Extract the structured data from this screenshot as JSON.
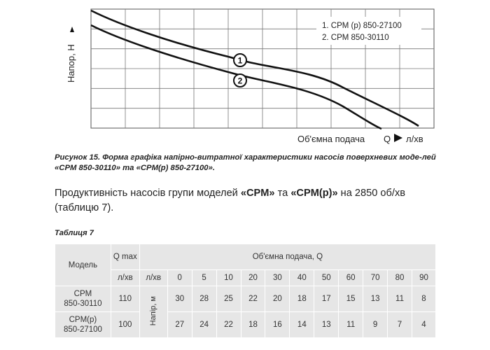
{
  "chart_data": {
    "type": "line",
    "ylabel": "Напор, Н",
    "xlabel": "Об'ємна подача",
    "x_axis_symbol": "Q",
    "x_unit": "л/хв",
    "legend": [
      "1. CPM (p) 850-27100",
      "2. CPM 850-30110"
    ],
    "series_markers": [
      "1",
      "2"
    ],
    "grid": true,
    "legend_position": "top-right"
  },
  "figure": {
    "caption": "Рисунок 15. Форма графіка напірно-витратної характеристики насосів поверхневих моде-лей «CPM 850-30110» та «CPM(p) 850-27100»."
  },
  "paragraph": {
    "text_start": "Продуктивність насосів групи моделей ",
    "bold1": "«CPM»",
    "text_mid": " та ",
    "bold2": "«CPM(p)»",
    "text_end": " на 2850 об/хв (таблицю 7)."
  },
  "table": {
    "title": "Таблиця 7",
    "header_model": "Модель",
    "header_qmax": "Q max",
    "header_flow": "Об'ємна подача, Q",
    "unit_qmax": "л/хв",
    "unit_flow": "л/хв",
    "flow_values": [
      "0",
      "5",
      "10",
      "20",
      "30",
      "40",
      "50",
      "60",
      "70",
      "80",
      "90"
    ],
    "head_label": "Напір, м",
    "rows": [
      {
        "model_line1": "CPM",
        "model_line2": "850-30110",
        "qmax": "110",
        "values": [
          "30",
          "28",
          "25",
          "22",
          "20",
          "18",
          "17",
          "15",
          "13",
          "11",
          "8"
        ]
      },
      {
        "model_line1": "CPM(p)",
        "model_line2": "850-27100",
        "qmax": "100",
        "values": [
          "27",
          "24",
          "22",
          "18",
          "16",
          "14",
          "13",
          "11",
          "9",
          "7",
          "4"
        ]
      }
    ]
  }
}
